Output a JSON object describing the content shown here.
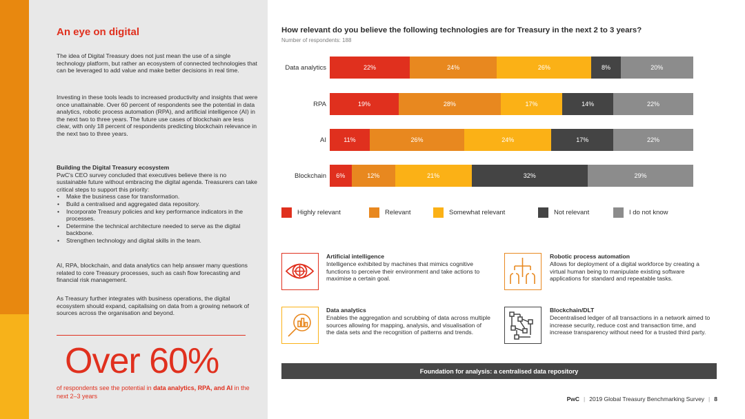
{
  "left": {
    "title": "An eye on digital",
    "para1": "The idea of Digital Treasury does not just mean the use of a single technology platform, but rather an ecosystem of connected technologies that can be leveraged to add value and make better decisions in real time.",
    "para2": "Investing in these tools leads to increased productivity and insights that were once unattainable. Over 60 percent of respondents see the potential in data analytics, robotic process automation (RPA), and artificial intelligence (AI) in the next two to three years. The future use cases of blockchain are less clear, with only 18 percent of respondents predicting blockchain relevance in the next two to three years.",
    "ecosystem_heading": "Building the Digital Treasury ecosystem",
    "ecosystem_intro": "PwC's CEO survey concluded that executives believe there is no sustainable future without embracing the digital agenda. Treasurers can take critical steps to support this priority:",
    "bullets": [
      "Make the business case for transformation.",
      "Build a centralised and aggregated data repository.",
      "Incorporate Treasury policies and key performance indicators in the processes.",
      "Determine the technical architecture needed to serve as the digital backbone.",
      "Strengthen technology and digital skills in the team."
    ],
    "para4": "AI, RPA, blockchain, and data analytics can help answer many questions related to core Treasury processes, such as cash flow forecasting and financial risk management.",
    "para5": "As Treasury further integrates with business operations, the digital ecosystem should expand, capitalising on data from a growing network of sources across the organisation and beyond.",
    "big_stat": "Over 60%",
    "stat_caption_pre": "of respondents see the potential in ",
    "stat_caption_bold": "data analytics, RPA, and AI",
    "stat_caption_post": " in the next 2–3 years"
  },
  "chart": {
    "title": "How relevant do you believe the following technologies are for Treasury in the next 2 to 3 years?",
    "subtitle": "Number of respondents: 188"
  },
  "chart_data": {
    "type": "bar",
    "orientation": "horizontal",
    "stacked": true,
    "categories": [
      "Data analytics",
      "RPA",
      "AI",
      "Blockchain"
    ],
    "series": [
      {
        "name": "Highly relevant",
        "color": "#e0301e",
        "values": [
          22,
          19,
          11,
          6
        ]
      },
      {
        "name": "Relevant",
        "color": "#e8881f",
        "values": [
          24,
          28,
          26,
          12
        ]
      },
      {
        "name": "Somewhat relevant",
        "color": "#fbb116",
        "values": [
          26,
          17,
          24,
          21
        ]
      },
      {
        "name": "Not relevant",
        "color": "#444444",
        "values": [
          8,
          14,
          17,
          32
        ]
      },
      {
        "name": "I do not know",
        "color": "#8c8c8c",
        "values": [
          20,
          22,
          22,
          29
        ]
      }
    ],
    "value_suffix": "%",
    "legend": "bottom"
  },
  "technologies": [
    {
      "title": "Artificial intelligence",
      "desc": "Intelligence exhibited by machines that mimics cognitive functions to perceive their environment and take actions to maximise a certain goal.",
      "icon": "eye-target-icon",
      "color": "#e0301e"
    },
    {
      "title": "Robotic process automation",
      "desc": "Allows for deployment of a digital workforce by creating a virtual human being to manipulate existing software applications for standard and repeatable tasks.",
      "icon": "process-tree-icon",
      "color": "#e8881f"
    },
    {
      "title": "Data analytics",
      "desc": "Enables the aggregation and scrubbing of data across multiple sources allowing for mapping, analysis, and visualisation of the data sets and the recognition of patterns and trends.",
      "icon": "magnifier-chart-icon",
      "color": "#fbb116"
    },
    {
      "title": "Blockchain/DLT",
      "desc": "Decentralised ledger of all transactions in a network aimed to increase security, reduce cost and transaction time, and increase transparency without need for a trusted third party.",
      "icon": "blockchain-nodes-icon",
      "color": "#444444"
    }
  ],
  "foundation_bar": "Foundation for analysis: a centralised data repository",
  "footer": {
    "brand": "PwC",
    "survey": "2019 Global Treasury Benchmarking Survey",
    "page": "8"
  }
}
